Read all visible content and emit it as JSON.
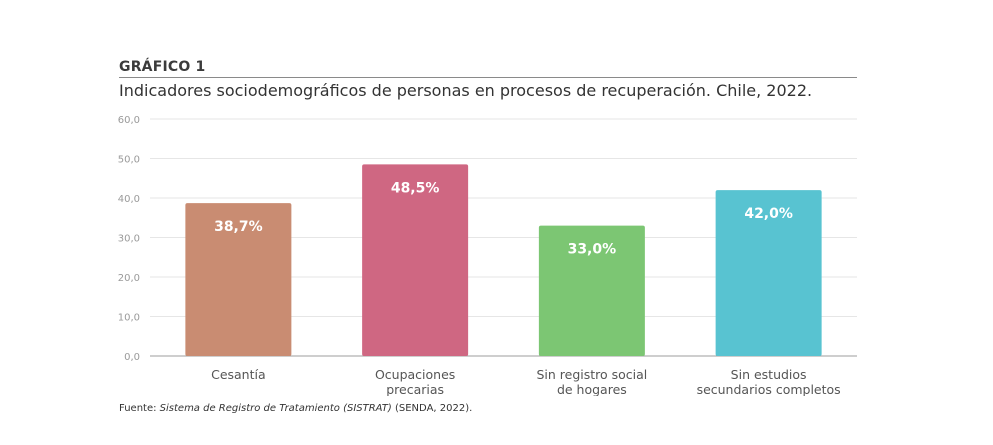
{
  "figure_label": "GRÁFICO 1",
  "title": "Indicadores sociodemográficos de personas en procesos de recuperación. Chile, 2022.",
  "source": {
    "prefix": "Fuente: ",
    "italic": "Sistema de Registro de Tratamiento (SISTRAT)",
    "suffix": " (SENDA, 2022)."
  },
  "chart_data": {
    "type": "bar",
    "categories": [
      [
        "Cesantía"
      ],
      [
        "Ocupaciones",
        "precarias"
      ],
      [
        "Sin registro social",
        "de hogares"
      ],
      [
        "Sin estudios",
        "secundarios completos"
      ]
    ],
    "values": [
      38.7,
      48.5,
      33.0,
      42.0
    ],
    "value_labels": [
      "38,7%",
      "48,5%",
      "33,0%",
      "42,0%"
    ],
    "colors": [
      "#c98c72",
      "#cf6782",
      "#7cc673",
      "#58c3d1"
    ],
    "ylim": [
      0,
      60
    ],
    "yticks": [
      0,
      10,
      20,
      30,
      40,
      50,
      60
    ],
    "ytick_labels": [
      "0,0",
      "10,0",
      "20,0",
      "30,0",
      "40,0",
      "50,0",
      "60,0"
    ],
    "xlabel": "",
    "ylabel": "",
    "grid": true,
    "legend": "none"
  }
}
